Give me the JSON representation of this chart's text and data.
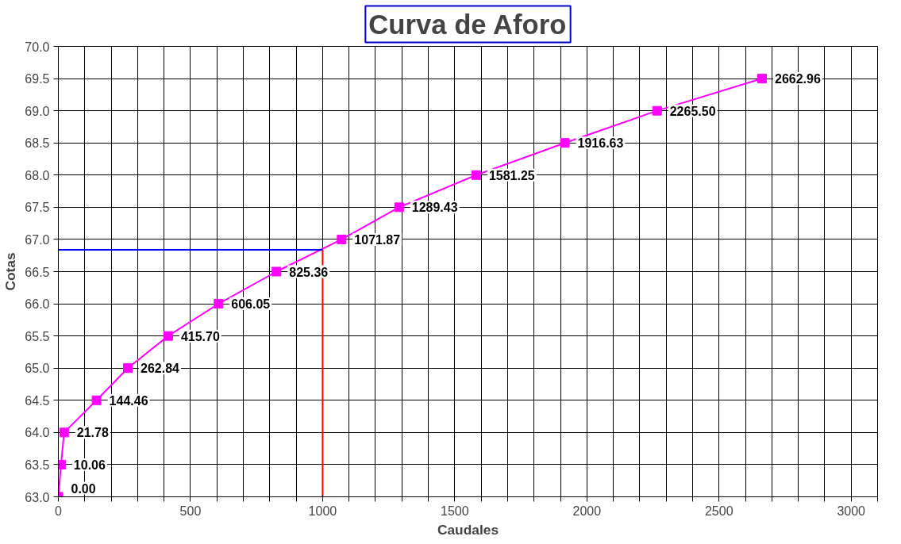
{
  "chart_data": {
    "type": "line",
    "title": "Curva de Aforo",
    "xlabel": "Caudales",
    "ylabel": "Cotas",
    "xlim": [
      0,
      3100
    ],
    "xticks": [
      0,
      {
        "value": 100,
        "label": null
      },
      {
        "value": 200,
        "label": null
      },
      {
        "value": 300,
        "label": null
      },
      {
        "value": 400,
        "label": null
      },
      500,
      {
        "value": 600,
        "label": null
      },
      {
        "value": 700,
        "label": null
      },
      {
        "value": 800,
        "label": null
      },
      {
        "value": 900,
        "label": null
      },
      1000,
      {
        "value": 1100,
        "label": null
      },
      {
        "value": 1200,
        "label": null
      },
      {
        "value": 1300,
        "label": null
      },
      {
        "value": 1400,
        "label": null
      },
      1500,
      {
        "value": 1600,
        "label": null
      },
      {
        "value": 1700,
        "label": null
      },
      {
        "value": 1800,
        "label": null
      },
      {
        "value": 1900,
        "label": null
      },
      2000,
      {
        "value": 2100,
        "label": null
      },
      {
        "value": 2200,
        "label": null
      },
      {
        "value": 2300,
        "label": null
      },
      {
        "value": 2400,
        "label": null
      },
      2500,
      {
        "value": 2600,
        "label": null
      },
      {
        "value": 2700,
        "label": null
      },
      {
        "value": 2800,
        "label": null
      },
      {
        "value": 2900,
        "label": null
      },
      3000,
      {
        "value": 3100,
        "label": null
      }
    ],
    "ylim": [
      63,
      70
    ],
    "yticks": [
      {
        "value": 63,
        "label": "63.0"
      },
      63.5,
      {
        "value": 64,
        "label": "64.0"
      },
      64.5,
      {
        "value": 65,
        "label": "65.0"
      },
      65.5,
      {
        "value": 66,
        "label": "66.0"
      },
      66.5,
      {
        "value": 67,
        "label": "67.0"
      },
      67.5,
      {
        "value": 68,
        "label": "68.0"
      },
      68.5,
      {
        "value": 69,
        "label": "69.0"
      },
      69.5,
      {
        "value": 70,
        "label": "70.0"
      }
    ],
    "grid": true,
    "annotations": [
      {
        "text": "0.00",
        "x": 0,
        "y": 63
      },
      {
        "text": "10.06",
        "x": 10.06,
        "y": 63.5
      },
      {
        "text": "21.78",
        "x": 21.78,
        "y": 64
      },
      {
        "text": "144.46",
        "x": 144.46,
        "y": 64.5
      },
      {
        "text": "262.84",
        "x": 262.84,
        "y": 65
      },
      {
        "text": "415.70",
        "x": 415.7,
        "y": 65.5
      },
      {
        "text": "606.05",
        "x": 606.05,
        "y": 66
      },
      {
        "text": "825.36",
        "x": 825.36,
        "y": 66.5
      },
      {
        "text": "1071.87",
        "x": 1071.87,
        "y": 67
      },
      {
        "text": "1289.43",
        "x": 1289.43,
        "y": 67.5
      },
      {
        "text": "1581.25",
        "x": 1581.25,
        "y": 68
      },
      {
        "text": "1916.63",
        "x": 1916.63,
        "y": 68.5
      },
      {
        "text": "2265.50",
        "x": 2265.5,
        "y": 69
      },
      {
        "text": "2662.96",
        "x": 2662.96,
        "y": 69.5
      }
    ],
    "series": [
      {
        "color": "#ff00ff",
        "marker": "square",
        "x": [
          0,
          10.06,
          21.78,
          144.46,
          262.84,
          415.7,
          606.05,
          825.36,
          1071.87,
          1289.43,
          1581.25,
          1916.63,
          2265.5,
          2662.96
        ],
        "values": [
          63,
          63.5,
          64,
          64.5,
          65,
          65.5,
          66,
          66.5,
          67,
          67.5,
          68,
          68.5,
          69,
          69.5
        ]
      },
      {
        "color": "#0000ff",
        "marker": "none",
        "x": [
          0,
          1000
        ],
        "values": [
          66.84,
          66.84
        ]
      },
      {
        "color": "#ff0000",
        "marker": "none",
        "x": [
          1000,
          1000
        ],
        "values": [
          63,
          66.84
        ]
      }
    ]
  }
}
